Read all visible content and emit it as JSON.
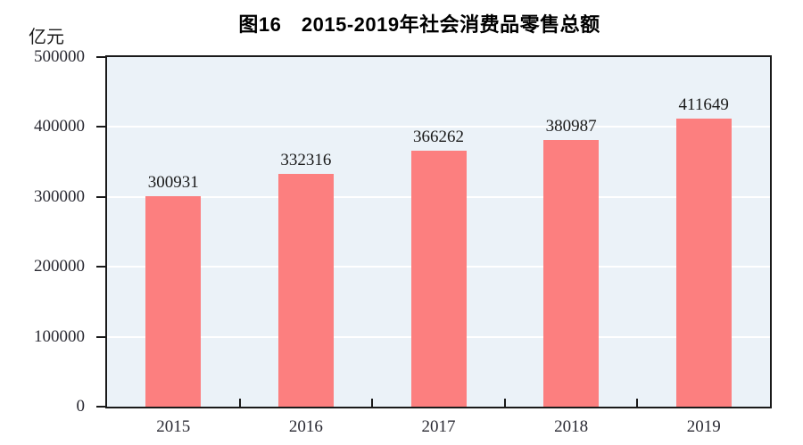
{
  "chart_data": {
    "type": "bar",
    "title": "图16　2015-2019年社会消费品零售总额",
    "unit_label": "亿元",
    "categories": [
      "2015",
      "2016",
      "2017",
      "2018",
      "2019"
    ],
    "values": [
      300931,
      332316,
      366262,
      380987,
      411649
    ],
    "data_labels": [
      "300931",
      "332316",
      "366262",
      "380987",
      "411649"
    ],
    "ylim": [
      0,
      500000
    ],
    "yticks": [
      0,
      100000,
      200000,
      300000,
      400000,
      500000
    ],
    "ytick_labels": [
      "0",
      "100000",
      "200000",
      "300000",
      "400000",
      "500000"
    ],
    "grid": "horizontal-on",
    "legend": "none",
    "colors": {
      "bar": "#FC7F7F",
      "plot_background": "#EBF2F8",
      "gridline": "#FFFFFF",
      "axis": "#1A1A1A",
      "value_text": "#1A1A1A",
      "tick_text": "#2A2A33",
      "title_text": "#000000"
    }
  }
}
